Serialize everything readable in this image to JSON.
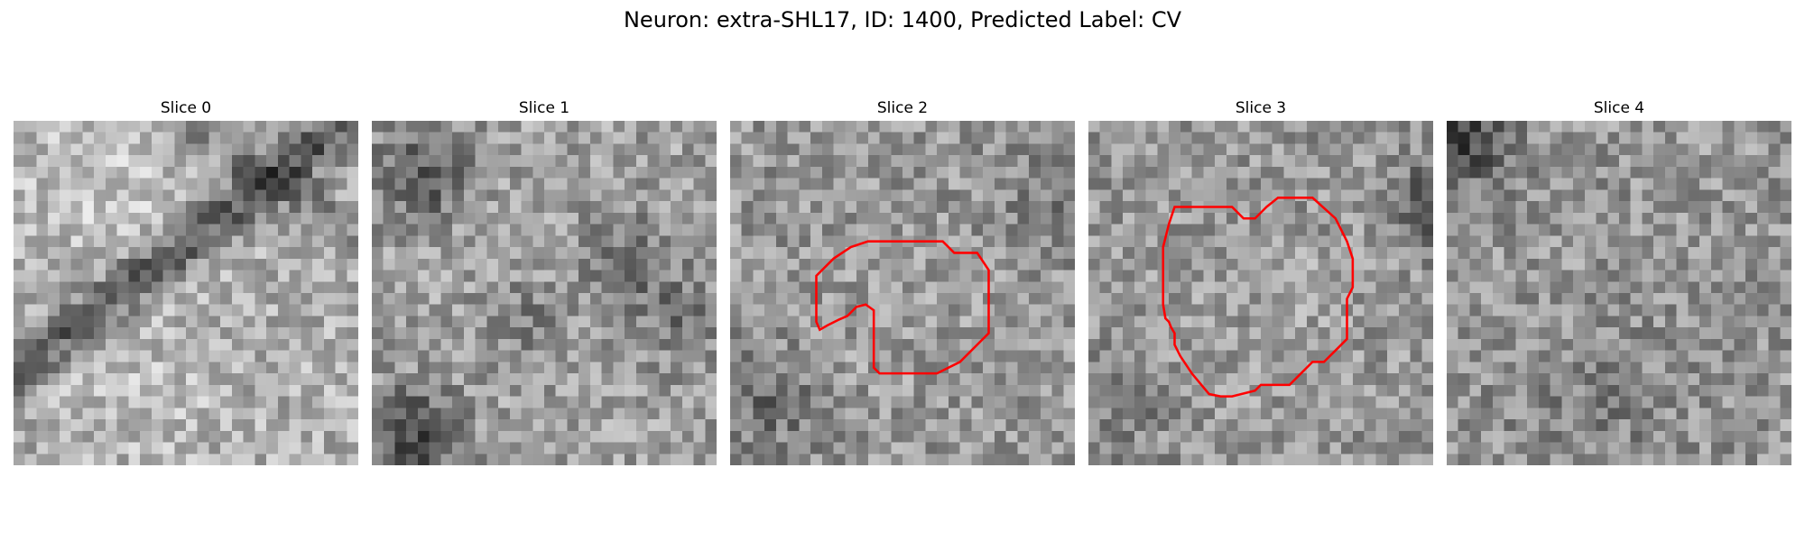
{
  "figure": {
    "title": "Neuron: extra-SHL17, ID: 1400, Predicted Label: CV"
  },
  "colors": {
    "background": "#ffffff",
    "contour": "#ff0000",
    "colormap": "grayscale"
  },
  "grid": {
    "rows": 30,
    "cols": 30
  },
  "panels": [
    {
      "title": "Slice 0",
      "seed": 11,
      "pattern": "diagonal-dark-band",
      "contour": []
    },
    {
      "title": "Slice 1",
      "seed": 23,
      "pattern": "mottled-dark-corners",
      "contour": []
    },
    {
      "title": "Slice 2",
      "seed": 37,
      "pattern": "noise-dark-spots",
      "contour": [
        [
          12,
          10.5
        ],
        [
          18.5,
          10.5
        ],
        [
          19.5,
          11.5
        ],
        [
          21.5,
          11.5
        ],
        [
          22.5,
          13
        ],
        [
          22.5,
          18.5
        ],
        [
          20,
          21
        ],
        [
          19,
          21.5
        ],
        [
          18,
          22
        ],
        [
          13,
          22
        ],
        [
          12.5,
          21.5
        ],
        [
          12.5,
          20
        ],
        [
          12.5,
          16.5
        ],
        [
          11.8,
          16
        ],
        [
          11,
          16.2
        ],
        [
          10.2,
          17
        ],
        [
          9.5,
          17.3
        ],
        [
          8.5,
          17.8
        ],
        [
          7.8,
          18.2
        ],
        [
          7.5,
          17.5
        ],
        [
          7.5,
          13.5
        ],
        [
          9,
          12
        ],
        [
          10.5,
          11
        ]
      ]
    },
    {
      "title": "Slice 3",
      "seed": 41,
      "pattern": "noise-dark-right-edge",
      "contour": [
        [
          7.5,
          7.5
        ],
        [
          12.5,
          7.5
        ],
        [
          13.5,
          8.5
        ],
        [
          14.5,
          8.5
        ],
        [
          15.5,
          7.5
        ],
        [
          16.5,
          6.7
        ],
        [
          19.5,
          6.7
        ],
        [
          21.5,
          8.5
        ],
        [
          22.5,
          10.5
        ],
        [
          23,
          12
        ],
        [
          23,
          14.5
        ],
        [
          22.5,
          15.5
        ],
        [
          22.5,
          19
        ],
        [
          21.5,
          20
        ],
        [
          21,
          20.5
        ],
        [
          20.5,
          21
        ],
        [
          19.5,
          21
        ],
        [
          18.5,
          22
        ],
        [
          17.5,
          23
        ],
        [
          15,
          23
        ],
        [
          14.5,
          23.5
        ],
        [
          12.5,
          24
        ],
        [
          11.5,
          24
        ],
        [
          10.5,
          23.8
        ],
        [
          9,
          22
        ],
        [
          8,
          20.5
        ],
        [
          7.5,
          19.5
        ],
        [
          7.5,
          18.5
        ],
        [
          7.2,
          18
        ],
        [
          7,
          17.5
        ],
        [
          6.7,
          17.2
        ],
        [
          6.5,
          16
        ],
        [
          6.5,
          11
        ],
        [
          7,
          9
        ]
      ]
    },
    {
      "title": "Slice 4",
      "seed": 53,
      "pattern": "noise-dark-topleft",
      "contour": []
    }
  ]
}
